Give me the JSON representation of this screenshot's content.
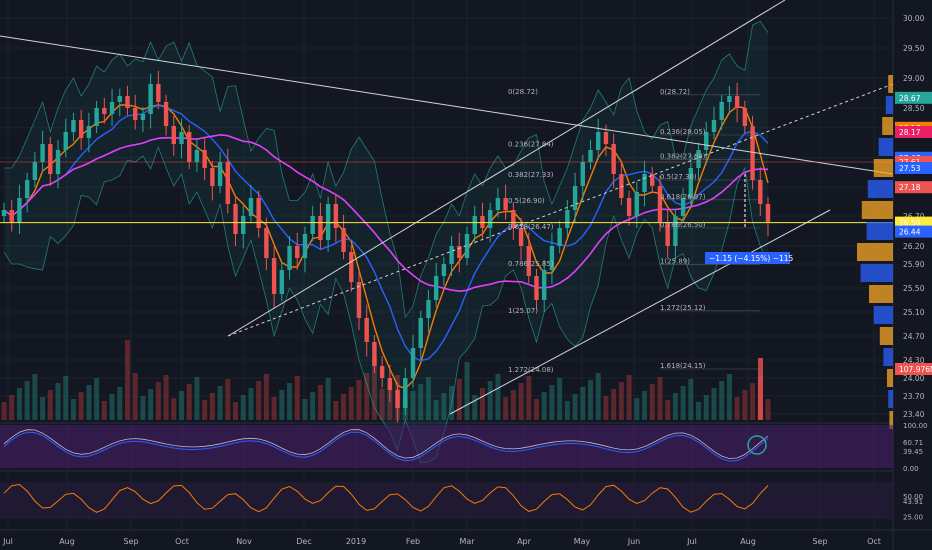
{
  "chart_data": {
    "type": "line",
    "symbol_note": "candlestick price chart with indicators",
    "price_axis": {
      "ticks": [
        "30.00",
        "29.50",
        "29.00",
        "28.50",
        "28.17",
        "27.67",
        "27.18",
        "26.70",
        "26.20",
        "25.90",
        "25.50",
        "25.10",
        "24.70",
        "24.30",
        "24.00",
        "23.70",
        "23.40"
      ],
      "range": [
        23.3,
        30.3
      ]
    },
    "price_badges": [
      {
        "label": "28.67",
        "value": 28.67,
        "color": "#26a69a"
      },
      {
        "label": "28.17",
        "value": 28.17,
        "color": "#f57c00"
      },
      {
        "label": "28.17",
        "value": 28.1,
        "color": "#e91e63"
      },
      {
        "label": "27.67",
        "value": 27.67,
        "color": "#2962ff"
      },
      {
        "label": "27.61",
        "value": 27.6,
        "color": "#ef5350"
      },
      {
        "label": "27.53",
        "value": 27.5,
        "color": "#2962ff"
      },
      {
        "label": "27.18",
        "value": 27.18,
        "color": "#ef5350"
      },
      {
        "label": "26.59",
        "value": 26.59,
        "color": "#ffeb3b"
      },
      {
        "label": "26.44",
        "value": 26.44,
        "color": "#2962ff"
      },
      {
        "label": "107.976M",
        "value": 24.15,
        "color": "#ef5350"
      }
    ],
    "time_axis": [
      "Jul",
      "Aug",
      "Sep",
      "Oct",
      "Nov",
      "Dec",
      "2019",
      "Feb",
      "Mar",
      "Apr",
      "May",
      "Jun",
      "Jul",
      "Aug",
      "Sep",
      "Oct"
    ],
    "candles_close": [
      26.8,
      26.6,
      27.0,
      27.3,
      27.6,
      27.9,
      27.4,
      27.8,
      28.1,
      28.3,
      28.0,
      28.2,
      28.5,
      28.4,
      28.6,
      28.7,
      28.5,
      28.3,
      28.4,
      28.9,
      28.6,
      28.2,
      27.9,
      28.1,
      27.6,
      27.8,
      27.5,
      27.2,
      27.6,
      26.9,
      26.4,
      26.7,
      27.0,
      26.5,
      26.0,
      25.4,
      25.8,
      26.2,
      26.0,
      26.4,
      26.7,
      26.3,
      26.9,
      26.5,
      26.1,
      25.6,
      25.0,
      24.6,
      24.2,
      24.0,
      23.8,
      23.5,
      24.0,
      24.5,
      25.0,
      25.3,
      25.7,
      25.9,
      26.2,
      26.0,
      26.4,
      26.7,
      26.5,
      26.8,
      27.0,
      26.8,
      26.5,
      26.2,
      25.7,
      25.3,
      25.8,
      26.2,
      26.5,
      26.8,
      27.2,
      27.6,
      27.8,
      28.1,
      27.9,
      27.4,
      27.0,
      26.7,
      27.1,
      27.4,
      27.2,
      26.6,
      26.2,
      26.7,
      27.0,
      27.5,
      27.8,
      28.1,
      28.3,
      28.6,
      28.7,
      28.5,
      28.2,
      27.3,
      26.9,
      26.6
    ],
    "fib_levels": [
      {
        "label": "0(28.72)",
        "value": 28.72
      },
      {
        "label": "0.236(28.05)",
        "value": 28.05
      },
      {
        "label": "0.382(27.64)",
        "value": 27.64
      },
      {
        "label": "0.5(27.30)",
        "value": 27.3
      },
      {
        "label": "0.618(26.97)",
        "value": 26.97
      },
      {
        "label": "0.786(26.50)",
        "value": 26.5
      },
      {
        "label": "1(25.89)",
        "value": 25.89
      },
      {
        "label": "1.272(25.12)",
        "value": 25.12
      },
      {
        "label": "1.618(24.15)",
        "value": 24.15
      }
    ],
    "fib_levels_left": [
      {
        "label": "0(28.72)",
        "value": 28.72
      },
      {
        "label": "0.236(27.84)",
        "value": 27.84
      },
      {
        "label": "0.382(27.33)",
        "value": 27.33
      },
      {
        "label": "0.5(26.90)",
        "value": 26.9
      },
      {
        "label": "0.618(26.47)",
        "value": 26.47
      },
      {
        "label": "0.786(25.85)",
        "value": 25.85
      },
      {
        "label": "1(25.07)",
        "value": 25.07
      },
      {
        "label": "1.272(24.08)",
        "value": 24.08
      }
    ],
    "measure_label": "−1.15 (−4.15%) −115",
    "rsi_axis": [
      "100.00",
      "60.71",
      "39.45",
      "0.00"
    ],
    "stoch_axis": [
      "50.00",
      "43.91",
      "25.00"
    ],
    "colors": {
      "up": "#26a69a",
      "down": "#ef5350",
      "ma_fast": "#f57c00",
      "ma_mid": "#2962ff",
      "ma_slow": "#e040fb",
      "band": "#26a69a",
      "ribbon": "#7b1fa2"
    }
  }
}
